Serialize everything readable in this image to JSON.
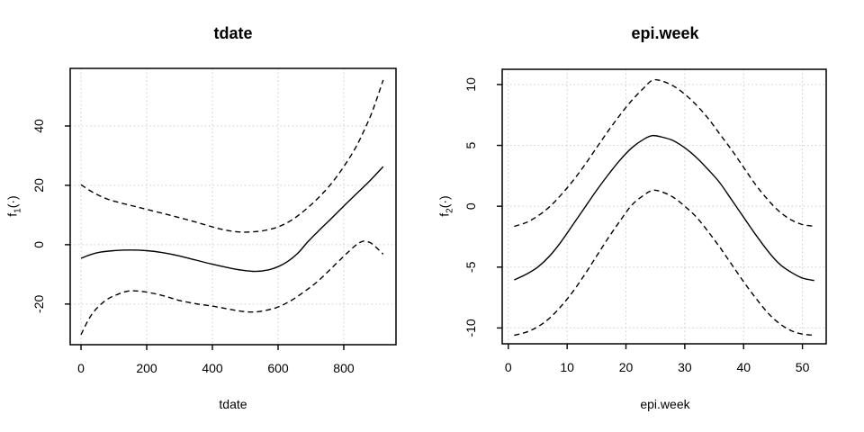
{
  "colors": {
    "line": "#000000",
    "grid": "#d3d3d3",
    "text": "#000000",
    "background": "#ffffff"
  },
  "chart_data": [
    {
      "type": "line",
      "title": "tdate",
      "xlabel": "tdate",
      "ylabel": "f1(.)",
      "ylabel_parts": {
        "base": "f",
        "sub": "1",
        "args": "(·)"
      },
      "x_ticks": [
        0,
        200,
        400,
        600,
        800
      ],
      "y_ticks": [
        -20,
        0,
        20,
        40
      ],
      "xlim": [
        -33,
        959
      ],
      "ylim": [
        -33.7,
        59.4
      ],
      "grid": true,
      "legend": "none",
      "series": [
        {
          "name": "fit",
          "line": "solid",
          "points": [
            [
              0,
              -4.6
            ],
            [
              30,
              -3.3
            ],
            [
              60,
              -2.5
            ],
            [
              100,
              -2.0
            ],
            [
              150,
              -1.8
            ],
            [
              200,
              -2.0
            ],
            [
              250,
              -2.7
            ],
            [
              300,
              -3.8
            ],
            [
              350,
              -5.2
            ],
            [
              400,
              -6.6
            ],
            [
              450,
              -7.8
            ],
            [
              490,
              -8.6
            ],
            [
              530,
              -9.0
            ],
            [
              570,
              -8.5
            ],
            [
              600,
              -7.4
            ],
            [
              630,
              -5.6
            ],
            [
              660,
              -2.9
            ],
            [
              690,
              0.9
            ],
            [
              720,
              4.3
            ],
            [
              760,
              8.6
            ],
            [
              800,
              13.0
            ],
            [
              840,
              17.3
            ],
            [
              880,
              21.6
            ],
            [
              920,
              26.3
            ]
          ]
        },
        {
          "name": "upper-ci",
          "line": "dashed",
          "points": [
            [
              0,
              20.2
            ],
            [
              40,
              17.4
            ],
            [
              80,
              15.4
            ],
            [
              120,
              14.1
            ],
            [
              160,
              13.0
            ],
            [
              200,
              11.9
            ],
            [
              250,
              10.5
            ],
            [
              300,
              9.1
            ],
            [
              350,
              7.6
            ],
            [
              400,
              6.0
            ],
            [
              440,
              4.9
            ],
            [
              480,
              4.3
            ],
            [
              520,
              4.3
            ],
            [
              560,
              4.8
            ],
            [
              600,
              6.0
            ],
            [
              640,
              8.2
            ],
            [
              680,
              11.5
            ],
            [
              720,
              15.5
            ],
            [
              760,
              20.3
            ],
            [
              800,
              26.3
            ],
            [
              840,
              33.5
            ],
            [
              880,
              43.0
            ],
            [
              900,
              49.0
            ],
            [
              920,
              55.5
            ]
          ]
        },
        {
          "name": "lower-ci",
          "line": "dashed",
          "points": [
            [
              0,
              -30.3
            ],
            [
              25,
              -24.8
            ],
            [
              50,
              -21.2
            ],
            [
              80,
              -18.4
            ],
            [
              110,
              -16.8
            ],
            [
              145,
              -15.6
            ],
            [
              180,
              -15.7
            ],
            [
              220,
              -16.4
            ],
            [
              260,
              -17.5
            ],
            [
              300,
              -18.8
            ],
            [
              350,
              -19.9
            ],
            [
              400,
              -20.7
            ],
            [
              440,
              -21.5
            ],
            [
              480,
              -22.3
            ],
            [
              520,
              -22.7
            ],
            [
              560,
              -22.2
            ],
            [
              600,
              -21.0
            ],
            [
              640,
              -18.8
            ],
            [
              680,
              -15.8
            ],
            [
              720,
              -12.4
            ],
            [
              760,
              -8.2
            ],
            [
              800,
              -3.9
            ],
            [
              830,
              -0.8
            ],
            [
              850,
              0.8
            ],
            [
              865,
              1.2
            ],
            [
              885,
              0.4
            ],
            [
              905,
              -1.6
            ],
            [
              920,
              -3.2
            ]
          ]
        }
      ]
    },
    {
      "type": "line",
      "title": "epi.week",
      "xlabel": "epi.week",
      "ylabel": "f2(.)",
      "ylabel_parts": {
        "base": "f",
        "sub": "2",
        "args": "(·)"
      },
      "x_ticks": [
        0,
        10,
        20,
        30,
        40,
        50
      ],
      "y_ticks": [
        -10,
        -5,
        0,
        5,
        10
      ],
      "xlim": [
        -1.04,
        54.04
      ],
      "ylim": [
        -11.3,
        11.25
      ],
      "grid": true,
      "legend": "none",
      "series": [
        {
          "name": "fit",
          "line": "solid",
          "points": [
            [
              1,
              -6.05
            ],
            [
              3,
              -5.6
            ],
            [
              5,
              -5.0
            ],
            [
              7,
              -4.1
            ],
            [
              9,
              -2.9
            ],
            [
              11,
              -1.5
            ],
            [
              13,
              -0.1
            ],
            [
              15,
              1.3
            ],
            [
              17,
              2.6
            ],
            [
              19,
              3.8
            ],
            [
              21,
              4.8
            ],
            [
              23,
              5.5
            ],
            [
              24.5,
              5.8
            ],
            [
              26,
              5.7
            ],
            [
              28,
              5.4
            ],
            [
              30,
              4.8
            ],
            [
              32,
              4.0
            ],
            [
              34,
              3.0
            ],
            [
              36,
              1.9
            ],
            [
              38,
              0.5
            ],
            [
              40,
              -0.9
            ],
            [
              42,
              -2.3
            ],
            [
              44,
              -3.6
            ],
            [
              46,
              -4.7
            ],
            [
              48,
              -5.4
            ],
            [
              50,
              -5.9
            ],
            [
              52,
              -6.1
            ]
          ]
        },
        {
          "name": "upper-ci",
          "line": "dashed",
          "points": [
            [
              1,
              -1.65
            ],
            [
              3,
              -1.35
            ],
            [
              5,
              -0.8
            ],
            [
              7,
              -0.05
            ],
            [
              9,
              0.95
            ],
            [
              11,
              2.1
            ],
            [
              13,
              3.4
            ],
            [
              15,
              4.8
            ],
            [
              17,
              6.2
            ],
            [
              19,
              7.5
            ],
            [
              21,
              8.7
            ],
            [
              23,
              9.7
            ],
            [
              24.5,
              10.35
            ],
            [
              26,
              10.3
            ],
            [
              28,
              9.9
            ],
            [
              30,
              9.2
            ],
            [
              32,
              8.3
            ],
            [
              34,
              7.2
            ],
            [
              36,
              5.9
            ],
            [
              38,
              4.6
            ],
            [
              40,
              3.2
            ],
            [
              42,
              1.8
            ],
            [
              44,
              0.6
            ],
            [
              46,
              -0.4
            ],
            [
              48,
              -1.1
            ],
            [
              50,
              -1.5
            ],
            [
              52,
              -1.65
            ]
          ]
        },
        {
          "name": "lower-ci",
          "line": "dashed",
          "points": [
            [
              1,
              -10.6
            ],
            [
              3,
              -10.35
            ],
            [
              5,
              -9.9
            ],
            [
              7,
              -9.2
            ],
            [
              9,
              -8.2
            ],
            [
              11,
              -7.0
            ],
            [
              13,
              -5.6
            ],
            [
              15,
              -4.1
            ],
            [
              17,
              -2.6
            ],
            [
              19,
              -1.2
            ],
            [
              21,
              0.1
            ],
            [
              23,
              0.9
            ],
            [
              24.5,
              1.3
            ],
            [
              26,
              1.2
            ],
            [
              28,
              0.75
            ],
            [
              30,
              0.0
            ],
            [
              32,
              -0.9
            ],
            [
              34,
              -2.1
            ],
            [
              36,
              -3.4
            ],
            [
              38,
              -4.8
            ],
            [
              40,
              -6.2
            ],
            [
              42,
              -7.5
            ],
            [
              44,
              -8.7
            ],
            [
              46,
              -9.6
            ],
            [
              48,
              -10.2
            ],
            [
              50,
              -10.5
            ],
            [
              52,
              -10.6
            ]
          ]
        }
      ]
    }
  ]
}
